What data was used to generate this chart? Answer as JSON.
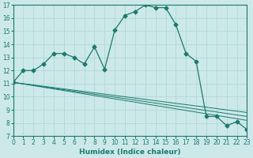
{
  "xlabel": "Humidex (Indice chaleur)",
  "xlim": [
    0,
    23
  ],
  "ylim": [
    7,
    17
  ],
  "xticks": [
    0,
    1,
    2,
    3,
    4,
    5,
    6,
    7,
    8,
    9,
    10,
    11,
    12,
    13,
    14,
    15,
    16,
    17,
    18,
    19,
    20,
    21,
    22,
    23
  ],
  "yticks": [
    7,
    8,
    9,
    10,
    11,
    12,
    13,
    14,
    15,
    16,
    17
  ],
  "bg_color": "#cce8e8",
  "line_color": "#1a7a6e",
  "grid_color": "#aad4d4",
  "series": [
    {
      "x": [
        0,
        1,
        2,
        3,
        4,
        5,
        6,
        7,
        8,
        9,
        10,
        11,
        12,
        13,
        14,
        15,
        16,
        17,
        18,
        19,
        20,
        21,
        22,
        23
      ],
      "y": [
        11.1,
        12.0,
        12.0,
        12.5,
        13.3,
        13.3,
        13.0,
        12.5,
        13.8,
        12.1,
        15.1,
        16.2,
        16.5,
        17.0,
        16.8,
        16.8,
        15.5,
        13.3,
        12.7,
        8.5,
        8.5,
        7.8,
        8.1,
        7.5
      ],
      "marker": "D",
      "markersize": 2.5,
      "lw": 0.9
    },
    {
      "x": [
        0,
        23
      ],
      "y": [
        11.1,
        8.2
      ],
      "marker": null,
      "markersize": 0,
      "lw": 0.7
    },
    {
      "x": [
        0,
        23
      ],
      "y": [
        11.1,
        8.5
      ],
      "marker": null,
      "markersize": 0,
      "lw": 0.7
    },
    {
      "x": [
        0,
        23
      ],
      "y": [
        11.1,
        8.8
      ],
      "marker": null,
      "markersize": 0,
      "lw": 0.7
    }
  ]
}
